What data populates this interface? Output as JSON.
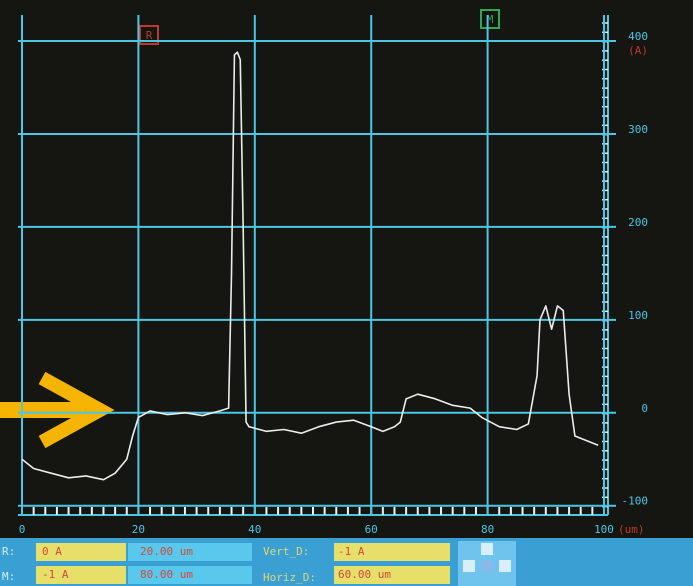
{
  "chart_data": {
    "type": "line",
    "x": [
      0,
      2,
      5,
      8,
      11,
      14,
      16,
      18,
      19,
      20,
      22,
      25,
      28,
      31,
      34,
      35.5,
      36,
      36.5,
      37,
      37.5,
      38,
      38.5,
      39,
      42,
      45,
      48,
      51,
      54,
      57,
      60,
      62,
      64,
      65,
      66,
      68,
      71,
      74,
      77,
      79,
      82,
      85,
      87,
      88.5,
      89,
      90,
      91,
      92,
      93,
      94,
      95,
      97,
      99
    ],
    "values": [
      -50,
      -60,
      -65,
      -70,
      -68,
      -72,
      -65,
      -50,
      -25,
      -5,
      2,
      -2,
      0,
      -3,
      2,
      5,
      150,
      385,
      388,
      380,
      200,
      -10,
      -15,
      -20,
      -18,
      -22,
      -15,
      -10,
      -8,
      -15,
      -20,
      -15,
      -10,
      15,
      20,
      15,
      8,
      5,
      -5,
      -15,
      -18,
      -12,
      40,
      100,
      115,
      90,
      115,
      110,
      20,
      -25,
      -30,
      -35
    ],
    "color": "#ececec",
    "xlim": [
      0,
      100
    ],
    "xticks": [
      0,
      20,
      40,
      60,
      80,
      100
    ],
    "ylim": [
      -110,
      428
    ],
    "yticks": [
      -100,
      0,
      100,
      200,
      300,
      400
    ],
    "grid": true,
    "grid_color": "#4cc6e2",
    "x_unit": "(um)",
    "y_unit": "(A)"
  },
  "panel": {
    "cursor_labels": [
      "R",
      "M"
    ],
    "row_labels": [
      "R:",
      "M:"
    ],
    "fields": [
      [
        "0 A",
        "20.00 um",
        "Vert_D:",
        "-1 A"
      ],
      [
        "-1 A",
        "80.00 um",
        "Horiz_D:",
        "60.00 um"
      ]
    ]
  }
}
